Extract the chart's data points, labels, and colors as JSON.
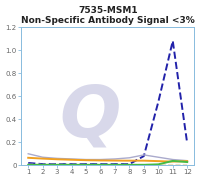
{
  "title_line1": "7535-MSM1",
  "title_line2": "Non-Specific Antibody Signal <3%",
  "x": [
    1,
    2,
    3,
    4,
    5,
    6,
    7,
    8,
    9,
    10,
    11,
    12
  ],
  "ylim": [
    0,
    1.2
  ],
  "yticks": [
    0,
    0.2,
    0.4,
    0.6,
    0.8,
    1.0,
    1.2
  ],
  "lines": {
    "dashed_blue": {
      "y": [
        0.02,
        0.01,
        0.01,
        0.01,
        0.01,
        0.01,
        0.01,
        0.01,
        0.08,
        0.55,
        1.08,
        0.19
      ],
      "color": "#2222aa",
      "lw": 1.4,
      "style": "dashed"
    },
    "solid_purple": {
      "y": [
        0.1,
        0.07,
        0.06,
        0.055,
        0.05,
        0.05,
        0.055,
        0.065,
        0.09,
        0.07,
        0.05,
        0.04
      ],
      "color": "#aaaacc",
      "lw": 1.0,
      "style": "solid"
    },
    "solid_orange": {
      "y": [
        0.065,
        0.058,
        0.052,
        0.048,
        0.044,
        0.042,
        0.041,
        0.04,
        0.04,
        0.036,
        0.032,
        0.036
      ],
      "color": "#f0a020",
      "lw": 1.4,
      "style": "solid"
    },
    "dashed_cream": {
      "y": [
        0.008,
        0.007,
        0.007,
        0.007,
        0.006,
        0.006,
        0.006,
        0.006,
        0.006,
        0.006,
        0.006,
        0.006
      ],
      "color": "#e8e0c0",
      "lw": 1.0,
      "style": "dashed"
    },
    "solid_green": {
      "y": [
        0.004,
        0.004,
        0.004,
        0.004,
        0.004,
        0.004,
        0.004,
        0.004,
        0.004,
        0.008,
        0.038,
        0.028
      ],
      "color": "#44bb44",
      "lw": 1.4,
      "style": "solid"
    }
  },
  "watermark_color": "#d8d8ea",
  "bg_color": "#ffffff",
  "axis_color": "#88bbdd",
  "title_color": "#222222",
  "tick_color": "#666666",
  "title_fontsize": 6.5,
  "tick_fontsize": 5.0
}
